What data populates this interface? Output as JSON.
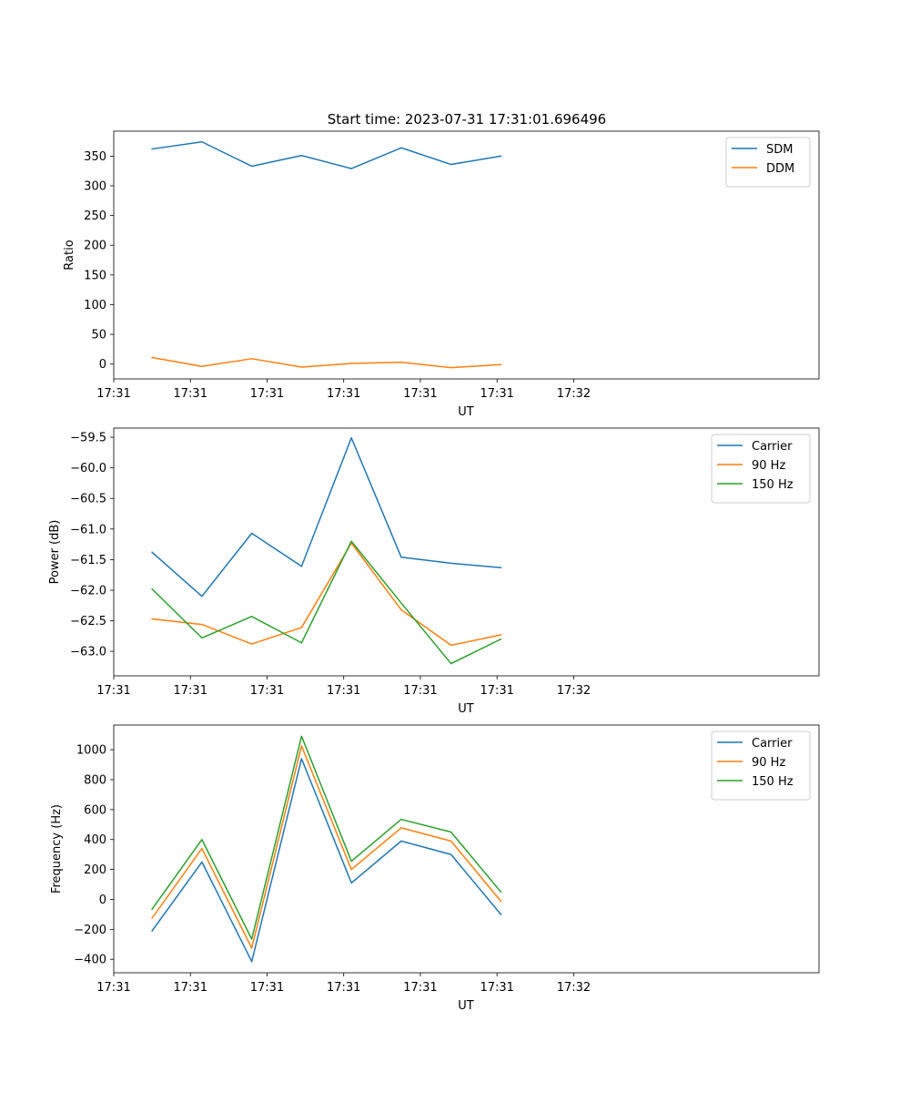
{
  "figure": {
    "title": "Start time: 2023-07-31 17:31:01.696496"
  },
  "colors": {
    "blue": "#1f77b4",
    "orange": "#ff7f0e",
    "green": "#2ca02c"
  },
  "chart_data": [
    {
      "type": "line",
      "title": "Start time: 2023-07-31 17:31:01.696496",
      "xlabel": "UT",
      "ylabel": "Ratio",
      "xlim": [
        0,
        9.2
      ],
      "ylim": [
        -25,
        392
      ],
      "x": [
        0.5,
        1.15,
        1.8,
        2.45,
        3.1,
        3.75,
        4.4,
        5.05
      ],
      "xticks": [
        0,
        1,
        2,
        3,
        4,
        5,
        6
      ],
      "xtick_labels": [
        "17:31",
        "17:31",
        "17:31",
        "17:31",
        "17:31",
        "17:31",
        "17:32"
      ],
      "yticks": [
        0,
        50,
        100,
        150,
        200,
        250,
        300,
        350
      ],
      "ytick_labels": [
        "0",
        "50",
        "100",
        "150",
        "200",
        "250",
        "300",
        "350"
      ],
      "legend_position": "top-right",
      "series": [
        {
          "name": "SDM",
          "color": "#1f77b4",
          "values": [
            362,
            374,
            333,
            351,
            329,
            364,
            336,
            350
          ]
        },
        {
          "name": "DDM",
          "color": "#ff7f0e",
          "values": [
            11,
            -4,
            9,
            -5,
            1,
            3,
            -6,
            -1
          ]
        }
      ]
    },
    {
      "type": "line",
      "title": "",
      "xlabel": "UT",
      "ylabel": "Power (dB)",
      "xlim": [
        0,
        9.2
      ],
      "ylim": [
        -63.4,
        -59.35
      ],
      "x": [
        0.5,
        1.15,
        1.8,
        2.45,
        3.1,
        3.75,
        4.4,
        5.05
      ],
      "xticks": [
        0,
        1,
        2,
        3,
        4,
        5,
        6
      ],
      "xtick_labels": [
        "17:31",
        "17:31",
        "17:31",
        "17:31",
        "17:31",
        "17:31",
        "17:32"
      ],
      "yticks": [
        -63.0,
        -62.5,
        -62.0,
        -61.5,
        -61.0,
        -60.5,
        -60.0,
        -59.5
      ],
      "ytick_labels": [
        "−63.0",
        "−62.5",
        "−62.0",
        "−61.5",
        "−61.0",
        "−60.5",
        "−60.0",
        "−59.5"
      ],
      "legend_position": "top-right",
      "series": [
        {
          "name": "Carrier",
          "color": "#1f77b4",
          "values": [
            -61.38,
            -62.1,
            -61.07,
            -61.61,
            -59.51,
            -61.46,
            -61.56,
            -61.63
          ]
        },
        {
          "name": "90 Hz",
          "color": "#ff7f0e",
          "values": [
            -62.47,
            -62.56,
            -62.88,
            -62.61,
            -61.23,
            -62.32,
            -62.9,
            -62.73
          ]
        },
        {
          "name": "150 Hz",
          "color": "#2ca02c",
          "values": [
            -61.98,
            -62.78,
            -62.43,
            -62.86,
            -61.2,
            -62.21,
            -63.2,
            -62.8
          ]
        }
      ]
    },
    {
      "type": "line",
      "title": "",
      "xlabel": "UT",
      "ylabel": "Frequency (Hz)",
      "xlim": [
        0,
        9.2
      ],
      "ylim": [
        -490,
        1165
      ],
      "x": [
        0.5,
        1.15,
        1.8,
        2.45,
        3.1,
        3.75,
        4.4,
        5.05
      ],
      "xticks": [
        0,
        1,
        2,
        3,
        4,
        5,
        6
      ],
      "xtick_labels": [
        "17:31",
        "17:31",
        "17:31",
        "17:31",
        "17:31",
        "17:31",
        "17:32"
      ],
      "yticks": [
        -400,
        -200,
        0,
        200,
        400,
        600,
        800,
        1000
      ],
      "ytick_labels": [
        "−400",
        "−200",
        "0",
        "200",
        "400",
        "600",
        "800",
        "1000"
      ],
      "legend_position": "top-right",
      "series": [
        {
          "name": "Carrier",
          "color": "#1f77b4",
          "values": [
            -210,
            250,
            -415,
            940,
            110,
            390,
            300,
            -100
          ]
        },
        {
          "name": "90 Hz",
          "color": "#ff7f0e",
          "values": [
            -125,
            340,
            -325,
            1025,
            200,
            478,
            390,
            -12
          ]
        },
        {
          "name": "150 Hz",
          "color": "#2ca02c",
          "values": [
            -65,
            400,
            -265,
            1090,
            255,
            535,
            450,
            50
          ]
        }
      ]
    }
  ]
}
